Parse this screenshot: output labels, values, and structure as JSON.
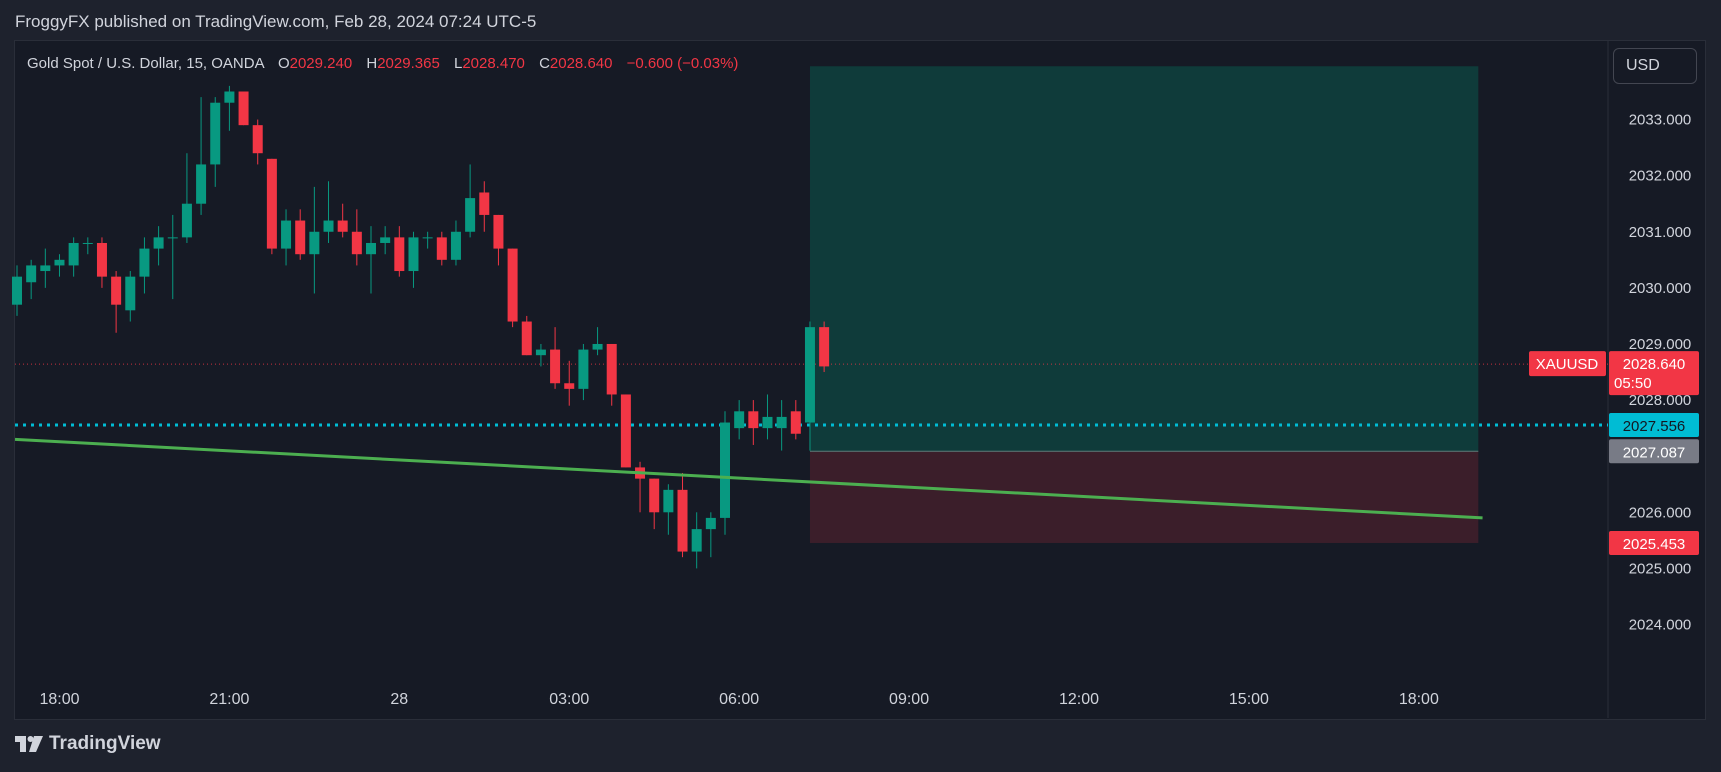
{
  "header": {
    "published": "FroggyFX published on TradingView.com, Feb 28, 2024 07:24 UTC-5"
  },
  "legend": {
    "symbol": "Gold Spot / U.S. Dollar, 15, OANDA",
    "o_label": "O",
    "o": "2029.240",
    "h_label": "H",
    "h": "2029.365",
    "l_label": "L",
    "l": "2028.470",
    "c_label": "C",
    "c": "2028.640",
    "change": "−0.600 (−0.03%)"
  },
  "currency_button": "USD",
  "footer": {
    "logo_text": "TradingView"
  },
  "colors": {
    "up": "#089981",
    "down": "#f23645",
    "background": "#161a25",
    "trendline": "#4caf50",
    "dotted_line": "#00bcd4",
    "profit_zone": "#0f3b3a",
    "loss_zone": "#3b1e2a",
    "axis_text": "#d1d4dc"
  },
  "chart_data": {
    "type": "candlestick",
    "symbol": "XAUUSD",
    "interval": "15",
    "ylim": [
      2023.1,
      2034.4
    ],
    "y_ticks": [
      "2024.000",
      "2025.000",
      "2026.000",
      "2028.000",
      "2029.000",
      "2030.000",
      "2031.000",
      "2032.000",
      "2033.000"
    ],
    "x_ticks": [
      {
        "label": "18:00",
        "bar": 3
      },
      {
        "label": "21:00",
        "bar": 15
      },
      {
        "label": "28",
        "bar": 27
      },
      {
        "label": "03:00",
        "bar": 39
      },
      {
        "label": "06:00",
        "bar": 51
      },
      {
        "label": "09:00",
        "bar": 63
      },
      {
        "label": "12:00",
        "bar": 75
      },
      {
        "label": "15:00",
        "bar": 87
      },
      {
        "label": "18:00",
        "bar": 99
      }
    ],
    "first_bar": 0,
    "candles": [
      [
        2029.7,
        2030.4,
        2029.5,
        2030.2
      ],
      [
        2030.1,
        2030.5,
        2029.8,
        2030.4
      ],
      [
        2030.3,
        2030.7,
        2030.0,
        2030.4
      ],
      [
        2030.4,
        2030.6,
        2030.2,
        2030.5
      ],
      [
        2030.4,
        2030.9,
        2030.2,
        2030.8
      ],
      [
        2030.8,
        2030.9,
        2030.6,
        2030.8
      ],
      [
        2030.8,
        2030.9,
        2030.0,
        2030.2
      ],
      [
        2030.2,
        2030.3,
        2029.2,
        2029.7
      ],
      [
        2029.6,
        2030.3,
        2029.4,
        2030.2
      ],
      [
        2030.2,
        2030.9,
        2029.9,
        2030.7
      ],
      [
        2030.7,
        2031.1,
        2030.4,
        2030.9
      ],
      [
        2030.9,
        2031.3,
        2029.8,
        2030.9
      ],
      [
        2030.9,
        2032.4,
        2030.8,
        2031.5
      ],
      [
        2031.5,
        2033.4,
        2031.3,
        2032.2
      ],
      [
        2032.2,
        2033.4,
        2031.8,
        2033.3
      ],
      [
        2033.3,
        2033.6,
        2032.8,
        2033.5
      ],
      [
        2033.5,
        2033.5,
        2032.9,
        2032.9
      ],
      [
        2032.9,
        2033.0,
        2032.2,
        2032.4
      ],
      [
        2032.3,
        2032.3,
        2030.6,
        2030.7
      ],
      [
        2030.7,
        2031.4,
        2030.4,
        2031.2
      ],
      [
        2031.2,
        2031.4,
        2030.5,
        2030.6
      ],
      [
        2030.6,
        2031.8,
        2029.9,
        2031.0
      ],
      [
        2031.0,
        2031.9,
        2030.8,
        2031.2
      ],
      [
        2031.2,
        2031.5,
        2030.9,
        2031.0
      ],
      [
        2031.0,
        2031.4,
        2030.4,
        2030.6
      ],
      [
        2030.6,
        2031.1,
        2029.9,
        2030.8
      ],
      [
        2030.8,
        2031.1,
        2030.6,
        2030.9
      ],
      [
        2030.9,
        2031.1,
        2030.2,
        2030.3
      ],
      [
        2030.3,
        2031.0,
        2030.0,
        2030.9
      ],
      [
        2030.9,
        2031.0,
        2030.7,
        2030.9
      ],
      [
        2030.9,
        2031.0,
        2030.4,
        2030.5
      ],
      [
        2030.5,
        2031.2,
        2030.4,
        2031.0
      ],
      [
        2031.0,
        2032.2,
        2030.9,
        2031.6
      ],
      [
        2031.7,
        2031.9,
        2031.0,
        2031.3
      ],
      [
        2031.3,
        2031.3,
        2030.4,
        2030.7
      ],
      [
        2030.7,
        2030.7,
        2029.3,
        2029.4
      ],
      [
        2029.4,
        2029.5,
        2028.8,
        2028.8
      ],
      [
        2028.8,
        2029.0,
        2028.6,
        2028.9
      ],
      [
        2028.9,
        2029.3,
        2028.2,
        2028.3
      ],
      [
        2028.3,
        2028.7,
        2027.9,
        2028.2
      ],
      [
        2028.2,
        2029.0,
        2028.0,
        2028.9
      ],
      [
        2028.9,
        2029.3,
        2028.8,
        2029.0
      ],
      [
        2029.0,
        2029.0,
        2027.9,
        2028.1
      ],
      [
        2028.1,
        2028.1,
        2026.8,
        2026.8
      ],
      [
        2026.8,
        2026.9,
        2026.0,
        2026.6
      ],
      [
        2026.6,
        2026.6,
        2025.7,
        2026.0
      ],
      [
        2026.0,
        2026.5,
        2025.6,
        2026.4
      ],
      [
        2026.4,
        2026.7,
        2025.2,
        2025.3
      ],
      [
        2025.3,
        2026.0,
        2025.0,
        2025.7
      ],
      [
        2025.7,
        2026.0,
        2025.2,
        2025.9
      ],
      [
        2025.9,
        2027.8,
        2025.6,
        2027.6
      ],
      [
        2027.5,
        2028.0,
        2027.3,
        2027.8
      ],
      [
        2027.8,
        2028.0,
        2027.2,
        2027.5
      ],
      [
        2027.5,
        2028.1,
        2027.3,
        2027.7
      ],
      [
        2027.5,
        2028.0,
        2027.1,
        2027.7
      ],
      [
        2027.8,
        2028.0,
        2027.3,
        2027.4
      ],
      [
        2027.6,
        2029.4,
        2027.1,
        2029.3
      ],
      [
        2029.3,
        2029.4,
        2028.5,
        2028.6
      ]
    ],
    "trendline": {
      "start": {
        "bar": 0,
        "price": 2027.3
      },
      "end": {
        "bar": 103.5,
        "price": 2025.9
      }
    },
    "dotted_level": 2027.556,
    "position": {
      "start_bar": 56,
      "end_bar": 103.2,
      "target": 2033.95,
      "entry": 2027.087,
      "stop": 2025.453
    },
    "price_labels": [
      {
        "text": "2028.640",
        "sub": "05:50",
        "price": 2028.64,
        "bg": "#f23645",
        "fg": "#ffffff"
      },
      {
        "text": "2027.556",
        "price": 2027.556,
        "bg": "#00bcd4",
        "fg": "#131722"
      },
      {
        "text": "2027.087",
        "price": 2027.087,
        "bg": "#787b86",
        "fg": "#ffffff"
      },
      {
        "text": "2025.453",
        "price": 2025.453,
        "bg": "#f23645",
        "fg": "#ffffff"
      }
    ],
    "symbol_tag": "XAUUSD"
  }
}
